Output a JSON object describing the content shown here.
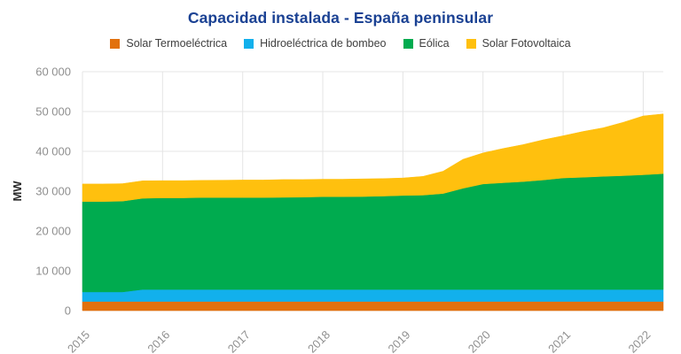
{
  "title": "Capacidad instalada - España peninsular",
  "legend": [
    {
      "label": "Solar Termoeléctrica",
      "color": "#e2710e"
    },
    {
      "label": "Hidroeléctrica de bombeo",
      "color": "#12b0ec"
    },
    {
      "label": "Eólica",
      "color": "#00ab4f"
    },
    {
      "label": "Solar Fotovoltaica",
      "color": "#ffc00e"
    }
  ],
  "colors": {
    "title": "#1a4193",
    "legend_text": "#3f3f3f",
    "tick_text": "#8f8f8f",
    "axis_label_text": "#2b2b2b",
    "gridline": "#e4e4e4",
    "background": "#ffffff"
  },
  "chart_data": {
    "type": "area",
    "stacked": true,
    "title": "Capacidad instalada - España peninsular",
    "xlabel": "",
    "ylabel": "MW",
    "grid": true,
    "legend_position": "top",
    "xlim": [
      2015,
      2022.25
    ],
    "ylim": [
      0,
      60000
    ],
    "xticks": [
      2015,
      2016,
      2017,
      2018,
      2019,
      2020,
      2021,
      2022
    ],
    "xtick_labels": [
      "2015",
      "2016",
      "2017",
      "2018",
      "2019",
      "2020",
      "2021",
      "2022"
    ],
    "ytick_values": [
      0,
      10000,
      20000,
      30000,
      40000,
      50000,
      60000
    ],
    "ytick_labels": [
      "0",
      "10 000",
      "20 000",
      "30 000",
      "40 000",
      "50 000",
      "60 000"
    ],
    "x": [
      2015.0,
      2015.25,
      2015.5,
      2015.75,
      2016.0,
      2016.25,
      2016.5,
      2016.75,
      2017.0,
      2017.25,
      2017.5,
      2017.75,
      2018.0,
      2018.25,
      2018.5,
      2018.75,
      2019.0,
      2019.25,
      2019.5,
      2019.75,
      2020.0,
      2020.25,
      2020.5,
      2020.75,
      2021.0,
      2021.25,
      2021.5,
      2021.75,
      2022.0,
      2022.25
    ],
    "series": [
      {
        "name": "Solar Termoeléctrica",
        "color": "#e2710e",
        "values": [
          2300,
          2300,
          2300,
          2300,
          2300,
          2300,
          2300,
          2300,
          2300,
          2300,
          2300,
          2300,
          2300,
          2300,
          2300,
          2300,
          2300,
          2300,
          2300,
          2300,
          2300,
          2300,
          2300,
          2300,
          2300,
          2300,
          2300,
          2300,
          2300,
          2300
        ]
      },
      {
        "name": "Hidroeléctrica de bombeo",
        "color": "#12b0ec",
        "values": [
          2400,
          2400,
          2400,
          3000,
          3000,
          3000,
          3000,
          3000,
          3000,
          3000,
          3000,
          3000,
          3000,
          3000,
          3000,
          3000,
          3000,
          3000,
          3000,
          3000,
          3000,
          3000,
          3000,
          3000,
          3000,
          3000,
          3000,
          3000,
          3000,
          3000
        ]
      },
      {
        "name": "Eólica",
        "color": "#00ab4f",
        "values": [
          22700,
          22700,
          22800,
          22900,
          23000,
          23000,
          23100,
          23100,
          23100,
          23100,
          23150,
          23200,
          23300,
          23300,
          23350,
          23450,
          23600,
          23700,
          24100,
          25400,
          26500,
          26800,
          27100,
          27500,
          28000,
          28200,
          28400,
          28600,
          28800,
          29100
        ]
      },
      {
        "name": "Solar Fotovoltaica",
        "color": "#ffc00e",
        "values": [
          4400,
          4400,
          4400,
          4400,
          4350,
          4350,
          4300,
          4350,
          4400,
          4400,
          4450,
          4400,
          4400,
          4400,
          4450,
          4400,
          4400,
          4700,
          5600,
          7300,
          7800,
          8600,
          9300,
          10100,
          10600,
          11500,
          12200,
          13400,
          14800,
          15000
        ]
      }
    ]
  }
}
